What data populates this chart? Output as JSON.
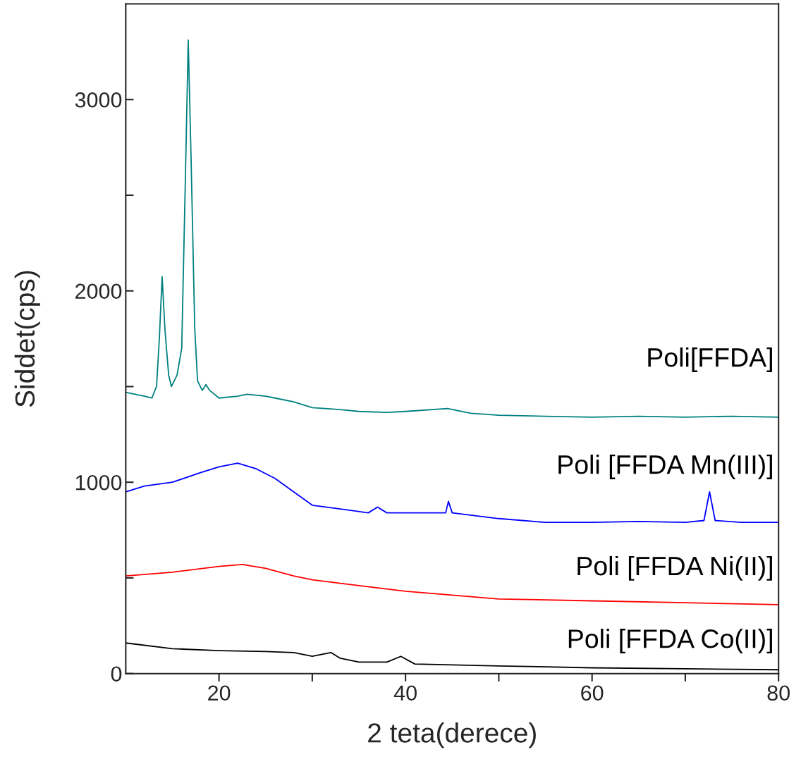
{
  "chart_data": {
    "type": "line",
    "xlabel": "2 teta(derece)",
    "ylabel": "Siddet(cps)",
    "xlim": [
      10,
      80
    ],
    "ylim": [
      0,
      3500
    ],
    "xticks": [
      20,
      {
        "value": 30,
        "label": null
      },
      40,
      {
        "value": 50,
        "label": null
      },
      60,
      {
        "value": 70,
        "label": null
      },
      80
    ],
    "yticks": [
      0,
      {
        "value": 500,
        "label": null
      },
      1000,
      {
        "value": 1500,
        "label": null
      },
      2000,
      {
        "value": 2500,
        "label": null
      },
      3000
    ],
    "grid": false,
    "legend": false,
    "marker": "none",
    "line_style": "solid",
    "series": [
      {
        "name": "Poli[FFDA]",
        "color": "#008080",
        "x": [
          10,
          11,
          12,
          12.8,
          13.3,
          13.6,
          13.9,
          14.2,
          14.6,
          14.9,
          15.5,
          16,
          16.4,
          16.7,
          17,
          17.4,
          17.7,
          18.2,
          18.6,
          19,
          20,
          22,
          23,
          25,
          26,
          28,
          30,
          33,
          35,
          38,
          40,
          44.5,
          47,
          50,
          55,
          60,
          65,
          70,
          75,
          80
        ],
        "values": [
          1470,
          1460,
          1450,
          1440,
          1500,
          1750,
          2074,
          1800,
          1560,
          1500,
          1560,
          1700,
          2600,
          3311,
          2700,
          1800,
          1530,
          1480,
          1510,
          1480,
          1440,
          1450,
          1460,
          1450,
          1440,
          1420,
          1390,
          1380,
          1370,
          1365,
          1370,
          1385,
          1360,
          1350,
          1345,
          1340,
          1345,
          1340,
          1345,
          1340
        ]
      },
      {
        "name": "Poli [FFDA Mn(III)]",
        "color": "#0000ff",
        "x": [
          10,
          12,
          15,
          18,
          20,
          22,
          24,
          26,
          28,
          30,
          33,
          36,
          37,
          38,
          42,
          44.3,
          44.6,
          45,
          50,
          55,
          60,
          65,
          70,
          72,
          72.6,
          73.2,
          76,
          80
        ],
        "values": [
          950,
          980,
          1000,
          1050,
          1080,
          1100,
          1070,
          1020,
          950,
          880,
          860,
          840,
          870,
          840,
          840,
          840,
          900,
          840,
          810,
          790,
          790,
          795,
          790,
          800,
          950,
          800,
          790,
          790
        ]
      },
      {
        "name": "Poli [FFDA Ni(II)]",
        "color": "#ff0000",
        "x": [
          10,
          15,
          20,
          22.5,
          25,
          28,
          30,
          35,
          40,
          45,
          50,
          60,
          70,
          80
        ],
        "values": [
          510,
          530,
          560,
          570,
          550,
          510,
          490,
          460,
          430,
          410,
          390,
          380,
          370,
          360
        ]
      },
      {
        "name": "Poli [FFDA Co(II)]",
        "color": "#000000",
        "x": [
          10,
          15,
          20,
          25,
          28,
          30,
          32,
          33,
          35,
          38,
          39.5,
          41,
          50,
          60,
          70,
          80
        ],
        "values": [
          160,
          130,
          120,
          115,
          110,
          90,
          110,
          80,
          60,
          60,
          90,
          50,
          40,
          30,
          25,
          20
        ]
      }
    ]
  }
}
